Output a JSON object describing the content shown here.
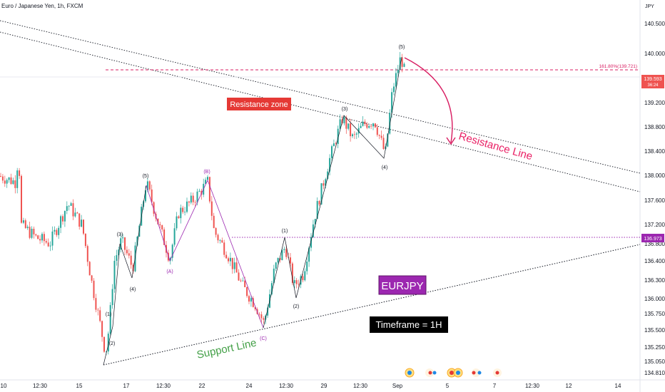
{
  "header": {
    "symbol_title": "Euro / Japanese Yen, 1h, FXCM",
    "currency": "JPY"
  },
  "colors": {
    "up": "#26a69a",
    "down": "#ef5350",
    "wave": "#131722",
    "corrective": "#9c27b0",
    "fib": "#d81b60",
    "support_text": "#43a047",
    "resistance_text": "#e91e63"
  },
  "chart_data": {
    "type": "candlestick",
    "ylim": [
      134.8,
      140.8
    ],
    "y_ticks": [
      "134.810",
      "135.050",
      "135.250",
      "135.500",
      "135.750",
      "136.000",
      "136.300",
      "136.400",
      "136.800",
      "137.200",
      "137.600",
      "138.000",
      "138.400",
      "138.800",
      "139.200",
      "140.000",
      "140.500"
    ],
    "x_ticks": [
      "10",
      "12:30",
      "15",
      "17",
      "12:30",
      "22",
      "24",
      "12:30",
      "29",
      "12:30",
      "Sep",
      "5",
      "7",
      "12:30",
      "12",
      "14"
    ],
    "price_badges": [
      {
        "price": 139.593,
        "label": "139.593",
        "sub": "36:24",
        "color": "#ef5350"
      },
      {
        "price": 136.973,
        "label": "136.973",
        "color": "#9c27b0"
      }
    ],
    "fib_level": {
      "price": 139.721,
      "label": "161.80%(139.721)"
    },
    "impulse_wave": [
      {
        "label": "(1)",
        "price": 135.75
      },
      {
        "label": "(2)",
        "price": 135.45
      },
      {
        "label": "(3)",
        "price": 136.95
      },
      {
        "label": "(4)",
        "price": 136.6
      },
      {
        "label": "(5)",
        "price": 137.9
      }
    ],
    "corrective_wave": [
      {
        "label": "(A)",
        "price": 136.6
      },
      {
        "label": "(B)",
        "price": 137.9
      },
      {
        "label": "(C)",
        "price": 135.5
      }
    ],
    "new_impulse_wave": [
      {
        "label": "(1)",
        "price": 136.85
      },
      {
        "label": "(2)",
        "price": 136.0
      },
      {
        "label": "(3)",
        "price": 138.95
      },
      {
        "label": "(4)",
        "price": 138.3
      },
      {
        "label": "(5)",
        "price": 140.0
      }
    ],
    "annotations": {
      "resistance_zone": "Resistance zone",
      "resistance_line": "Resistance Line",
      "support_line": "Support Line",
      "pair": "EURJPY",
      "timeframe": "Timeframe = 1H"
    }
  }
}
